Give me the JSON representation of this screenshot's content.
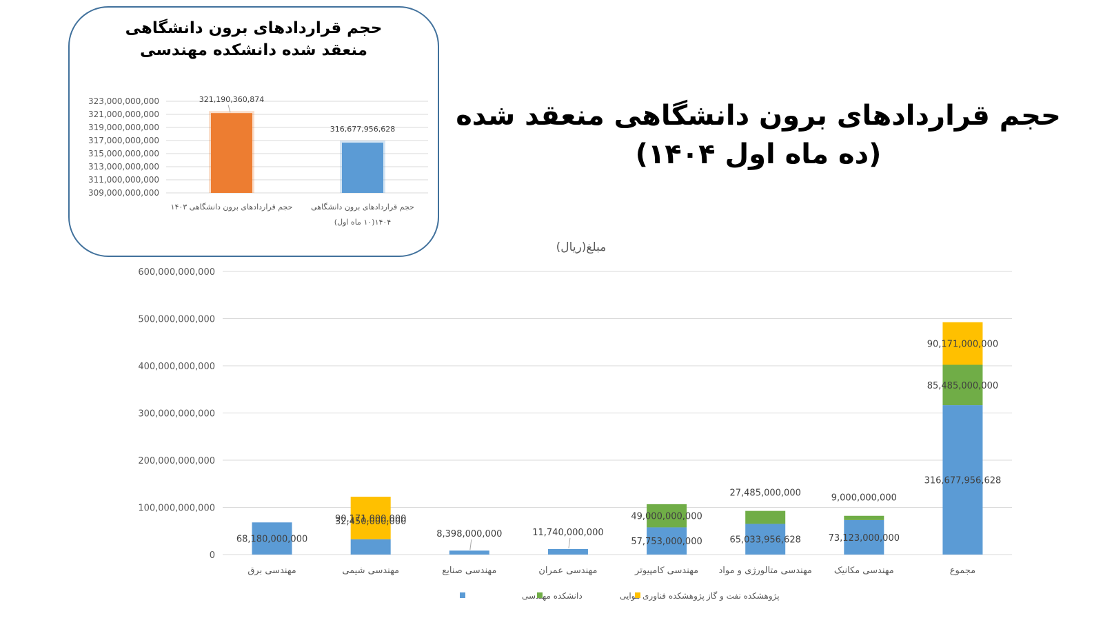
{
  "main_title": {
    "line1": "حجم قراردادهای برون دانشگاهی منعقد شده",
    "line2": "(ده ماه اول ۱۴۰۴)"
  },
  "colors": {
    "engineering_faculty": "#5b9bd5",
    "aerospace_research": "#70ad47",
    "oil_gas_research": "#ffc000",
    "inset_1403": "#ed7d31",
    "inset_1404": "#5b9bd5",
    "inset_border": "#41719c",
    "grid": "#d9d9d9",
    "axis_text": "#595959"
  },
  "chart_data": [
    {
      "type": "bar",
      "title": "حجم قراردادهای برون دانشگاهی منعقد شده دانشکده مهندسی",
      "title_lines": [
        "حجم قراردادهای برون دانشگاهی",
        "منعقد شده دانشکده مهندسی"
      ],
      "categories": [
        "حجم قراردادهای برون دانشگاهی ۱۴۰۳",
        "حجم قراردادهای برون دانشگاهی ۱۴۰۴(۱۰ ماه اول)"
      ],
      "category_lines": [
        [
          "حجم قراردادهای برون دانشگاهی ۱۴۰۳"
        ],
        [
          "حجم قراردادهای برون دانشگاهی",
          "۱۴۰۴(۱۰ ماه اول)"
        ]
      ],
      "values": [
        321190360874,
        316677956628
      ],
      "value_labels": [
        "321,190,360,874",
        "316,677,956,628"
      ],
      "ylim": [
        309000000000,
        323000000000
      ],
      "yticks": [
        309000000000,
        311000000000,
        313000000000,
        315000000000,
        317000000000,
        319000000000,
        321000000000,
        323000000000
      ],
      "ytick_labels": [
        "309,000,000,000",
        "311,000,000,000",
        "313,000,000,000",
        "315,000,000,000",
        "317,000,000,000",
        "319,000,000,000",
        "321,000,000,000",
        "323,000,000,000"
      ],
      "grid": true
    },
    {
      "type": "bar",
      "stacked": true,
      "title": "مبلغ(ریال)",
      "categories": [
        "مهندسی برق",
        "مهندسی شیمی",
        "مهندسی صنایع",
        "مهندسی عمران",
        "مهندسی کامپیوتر",
        "مهندسی متالورژی و مواد",
        "مهندسی مکانیک",
        "مجموع"
      ],
      "series": [
        {
          "name": "دانشکده مهندسی",
          "values": [
            68180000000,
            32450000000,
            8398000000,
            11740000000,
            57753000000,
            65033956628,
            73123000000,
            316677956628
          ],
          "labels": [
            "68,180,000,000",
            "32,450,000,000",
            "8,398,000,000",
            "11,740,000,000",
            "57,753,000,000",
            "65,033,956,628",
            "73,123,000,000",
            "316,677,956,628"
          ]
        },
        {
          "name": "پژوهشکده فناوری هوایی",
          "values": [
            0,
            0,
            0,
            0,
            49000000000,
            27485000000,
            9000000000,
            85485000000
          ],
          "labels": [
            "",
            "",
            "",
            "",
            "49,000,000,000",
            "27,485,000,000",
            "9,000,000,000",
            "85,485,000,000"
          ]
        },
        {
          "name": "پژوهشکده نفت و گاز",
          "values": [
            0,
            90171000000,
            0,
            0,
            0,
            0,
            0,
            90171000000
          ],
          "labels": [
            "",
            "90,171,000,000",
            "",
            "",
            "",
            "",
            "",
            "90,171,000,000"
          ]
        }
      ],
      "ylim": [
        0,
        600000000000
      ],
      "yticks": [
        0,
        100000000000,
        200000000000,
        300000000000,
        400000000000,
        500000000000,
        600000000000
      ],
      "ytick_labels": [
        "0",
        "100,000,000,000",
        "200,000,000,000",
        "300,000,000,000",
        "400,000,000,000",
        "500,000,000,000",
        "600,000,000,000"
      ],
      "grid": true,
      "legend_position": "bottom"
    }
  ]
}
